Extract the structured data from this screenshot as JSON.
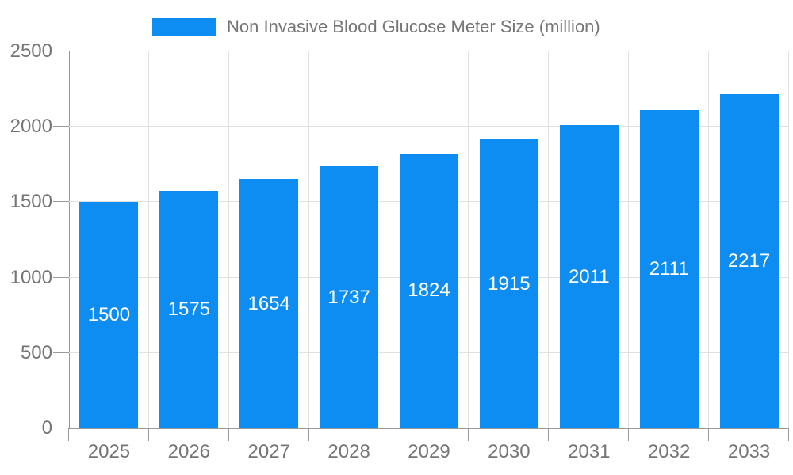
{
  "legend": {
    "label": "Non Invasive Blood Glucose Meter Size (million)"
  },
  "chart_data": {
    "type": "bar",
    "title": "Non Invasive Blood Glucose Meter Size (million)",
    "series_name": "Non Invasive Blood Glucose Meter Size (million)",
    "categories": [
      "2025",
      "2026",
      "2027",
      "2028",
      "2029",
      "2030",
      "2031",
      "2032",
      "2033"
    ],
    "values": [
      1500,
      1575,
      1654,
      1737,
      1824,
      1915,
      2011,
      2111,
      2217
    ],
    "xlabel": "",
    "ylabel": "",
    "ylim": [
      0,
      2500
    ],
    "ytick_interval": 500,
    "ytick_labels": [
      "0",
      "500",
      "1000",
      "1500",
      "2000",
      "2500"
    ],
    "grid": true,
    "legend_position": "top",
    "bar_color": "#0d8df2",
    "bar_label_color": "#ffffff",
    "axis_text_color": "#757575",
    "axis_line_color": "#999999",
    "grid_color": "#e0e0e0"
  }
}
